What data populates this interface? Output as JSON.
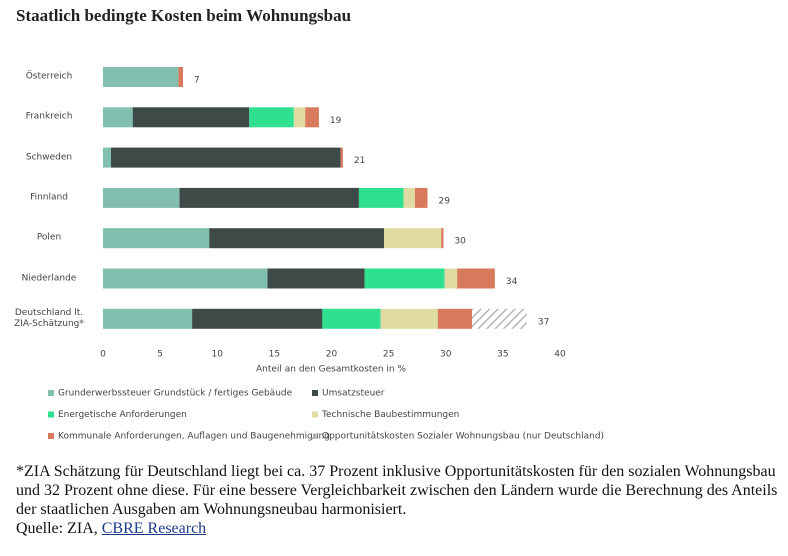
{
  "chart_data": {
    "type": "stacked-barh",
    "title": "Staatlich bedingte Kosten beim Wohnungsbau",
    "categories": [
      "Österreich",
      "Frankreich",
      "Schweden",
      "Finnland",
      "Polen",
      "Niederlande",
      "Deutschland lt.\nZIA-Schätzung*"
    ],
    "series": [
      {
        "name": "Grunderwerbssteuer Grundstück / fertiges Gebäude",
        "color": "#82bfae",
        "values": [
          6.6,
          2.6,
          0.7,
          6.7,
          9.3,
          14.4,
          7.8
        ]
      },
      {
        "name": "Umsatzsteuer",
        "color": "#3e4a47",
        "values": [
          null,
          10.2,
          20.1,
          15.7,
          15.3,
          8.5,
          11.4
        ]
      },
      {
        "name": "Energetische Anforderungen",
        "color": "#2ee08f",
        "values": [
          null,
          3.9,
          null,
          3.9,
          null,
          7.0,
          5.1
        ]
      },
      {
        "name": "Technische Baubestimmungen",
        "color": "#e0dba2",
        "values": [
          null,
          1.0,
          null,
          1.0,
          5.0,
          1.1,
          5.0
        ]
      },
      {
        "name": "Kommunale Anforderungen, Auflagen und Baugenehmigung",
        "color": "#d97a5c",
        "values": [
          0.4,
          1.2,
          0.2,
          1.1,
          0.2,
          3.3,
          3.0
        ]
      },
      {
        "name": "Opportunitätskosten Sozialer Wohnungsbau (nur Deutschland)",
        "color": "#a9a9a9",
        "hatch": true,
        "values": [
          null,
          null,
          null,
          null,
          null,
          null,
          4.8
        ]
      }
    ],
    "totals": [
      7,
      19,
      21,
      29,
      30,
      34,
      37
    ],
    "xlabel": "Anteil an den Gesamtkosten in %",
    "xlim": [
      0,
      40
    ],
    "xticks": [
      0,
      5,
      10,
      15,
      20,
      25,
      30,
      35,
      40
    ],
    "grid": false
  },
  "footnote": "*ZIA Schätzung für Deutschland liegt bei ca. 37 Prozent inklusive Opportunitätskosten für den sozialen Wohnungsbau und 32 Prozent ohne diese. Für eine bessere Vergleichbarkeit zwischen den Ländern wurde die Berechnung des Anteils der staatlichen Ausgaben am Wohnungsneubau harmonisiert.",
  "source_prefix": "Quelle: ZIA,",
  "source_link": "CBRE Research"
}
